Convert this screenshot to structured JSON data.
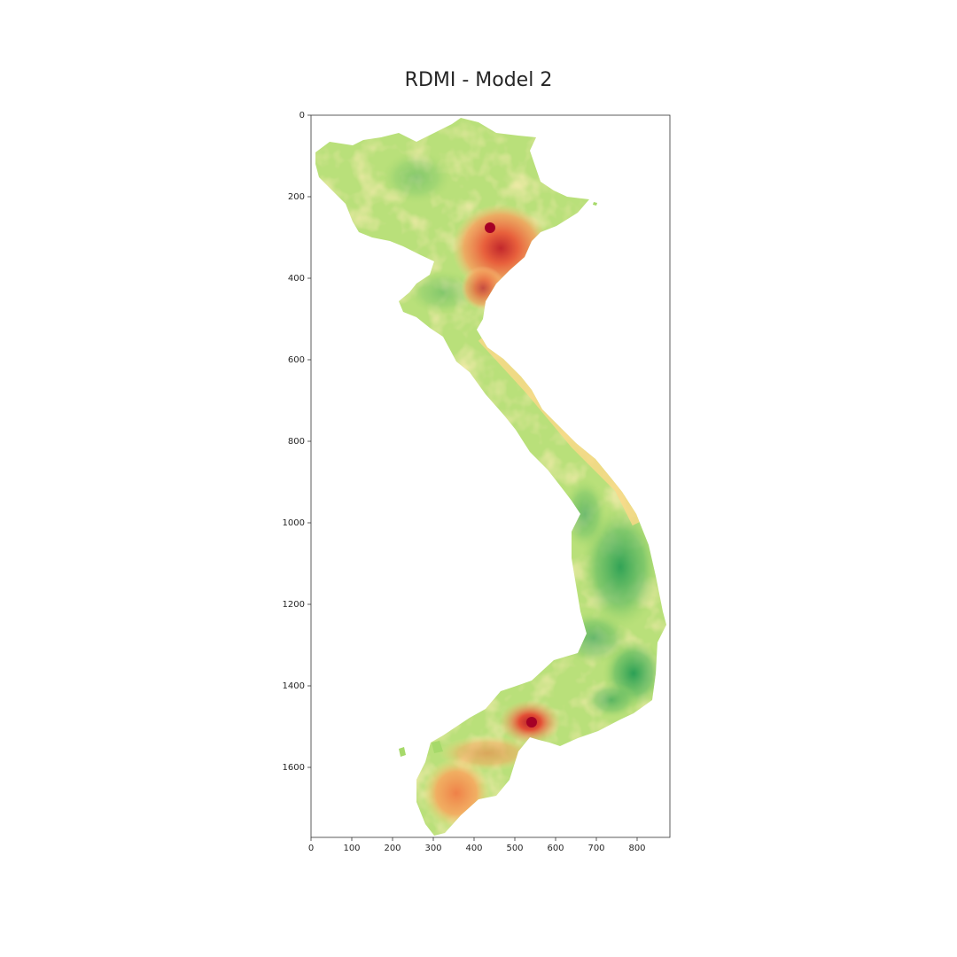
{
  "title": "RDMI - Model 2",
  "x_ticks": [
    "0",
    "100",
    "200",
    "300",
    "400",
    "500",
    "600",
    "700",
    "800"
  ],
  "y_ticks": [
    "0",
    "200",
    "400",
    "600",
    "800",
    "1000",
    "1200",
    "1400",
    "1600"
  ],
  "colormap": {
    "name": "RdYlGn",
    "high_green": "#1a9850",
    "mid_yellow": "#fee08b",
    "low_red": "#d73027"
  }
}
